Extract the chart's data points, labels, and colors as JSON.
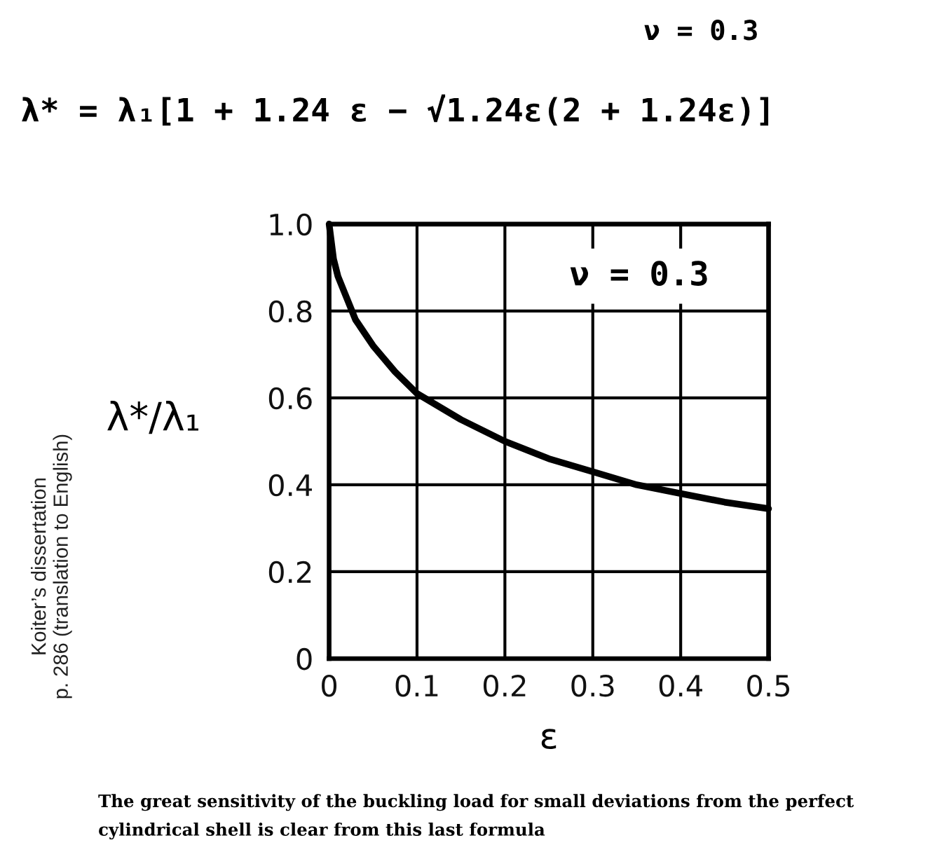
{
  "chart_data": {
    "type": "line",
    "title": "λ* = λ₁[1 + 1.24 ε − √1.24ε(2 + 1.24ε)]",
    "xlabel": "ε",
    "ylabel": "λ*/λ₁",
    "annotations": [
      "ν = 0.3",
      "ν = 0.3",
      "Koiter’s dissertation\np. 286 (translation to English)",
      "The great sensitivity of the buckling load for small deviations from the perfect\ncylindrical shell is clear from this last formula"
    ],
    "x": [
      0,
      0.005,
      0.01,
      0.02,
      0.03,
      0.05,
      0.075,
      0.1,
      0.15,
      0.2,
      0.25,
      0.3,
      0.35,
      0.4,
      0.45,
      0.5
    ],
    "series": [
      {
        "color": "#000000",
        "values": [
          1.0,
          0.92,
          0.88,
          0.83,
          0.78,
          0.72,
          0.66,
          0.61,
          0.55,
          0.5,
          0.46,
          0.43,
          0.4,
          0.38,
          0.36,
          0.345
        ]
      }
    ],
    "xlim": [
      0,
      0.5
    ],
    "ylim": [
      0,
      1
    ],
    "xticks": [
      0,
      0.1,
      0.2,
      0.3,
      0.4,
      0.5
    ],
    "yticks": [
      0,
      0.2,
      0.4,
      0.6,
      0.8,
      {
        "value": 1,
        "label": "1.0"
      }
    ],
    "grid": true,
    "marker": "none",
    "line_style": "solid"
  }
}
